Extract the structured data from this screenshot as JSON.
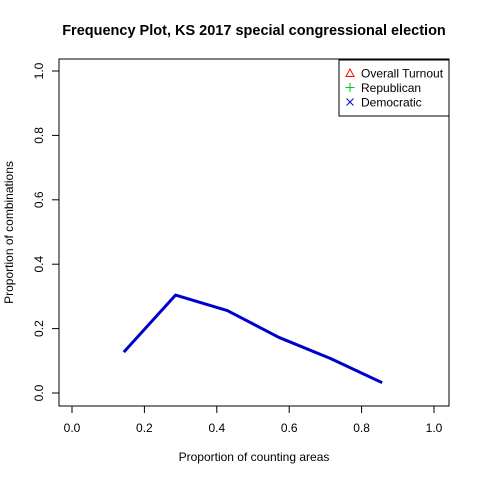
{
  "chart_data": {
    "type": "line",
    "title": "Frequency Plot, KS 2017 special congressional election",
    "xlabel": "Proportion of counting areas",
    "ylabel": "Proportion of combinations",
    "xlim": [
      0,
      1
    ],
    "ylim": [
      0,
      1
    ],
    "x_ticks": [
      "0.0",
      "0.2",
      "0.4",
      "0.6",
      "0.8",
      "1.0"
    ],
    "y_ticks": [
      "0.0",
      "0.2",
      "0.4",
      "0.6",
      "0.8",
      "1.0"
    ],
    "grid": false,
    "legend": {
      "placement": "top-right",
      "entries": [
        {
          "label": "Overall Turnout",
          "symbol": "triangle",
          "color": "#FF0000"
        },
        {
          "label": "Republican",
          "symbol": "plus",
          "color": "#00CD00"
        },
        {
          "label": "Democratic",
          "symbol": "cross",
          "color": "#0000CD"
        }
      ]
    },
    "series": [
      {
        "color": "#0000CD",
        "x": [
          0.143,
          0.286,
          0.429,
          0.571,
          0.714,
          0.857
        ],
        "values": [
          0.127,
          0.304,
          0.256,
          0.173,
          0.107,
          0.032
        ]
      }
    ]
  }
}
